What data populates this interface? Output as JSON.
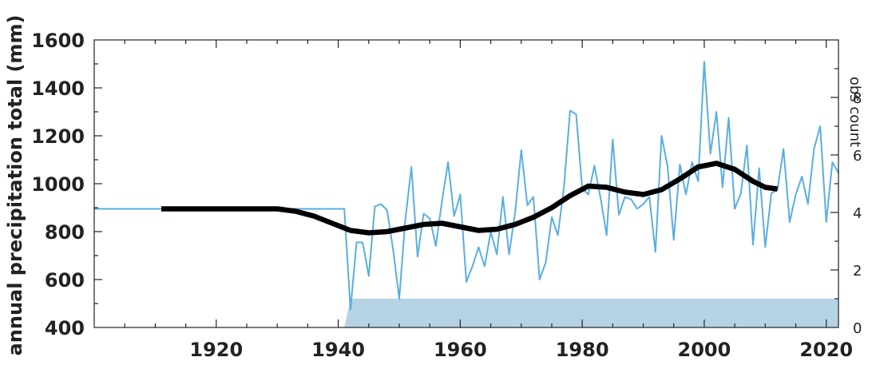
{
  "chart_data": {
    "type": "line",
    "title": "",
    "xlabel": "",
    "ylabel": "annual precipitation total (mm)",
    "y2label": "obs count",
    "xlim": [
      1900,
      2022
    ],
    "ylim": [
      400,
      1600
    ],
    "y2lim": [
      0,
      10
    ],
    "xticks": [
      1920,
      1940,
      1960,
      1980,
      2000,
      2020
    ],
    "yticks": [
      400,
      600,
      800,
      1000,
      1200,
      1400,
      1600
    ],
    "y2ticks": [
      0,
      2,
      4,
      6,
      8
    ],
    "grid": false,
    "colors": {
      "annual": "#5aaee0",
      "smooth": "#000000",
      "obs_fill": "#b5d3e5",
      "axes": "#222222"
    },
    "series": [
      {
        "x": [
          1900,
          1941,
          1942,
          1943,
          1944,
          1945,
          1946,
          1947,
          1948,
          1949,
          1950,
          1951,
          1952,
          1953,
          1954,
          1955,
          1956,
          1957,
          1958,
          1959,
          1960,
          1961,
          1962,
          1963,
          1964,
          1965,
          1966,
          1967,
          1968,
          1969,
          1970,
          1971,
          1972,
          1973,
          1974,
          1975,
          1976,
          1977,
          1978,
          1979,
          1980,
          1981,
          1982,
          1983,
          1984,
          1985,
          1986,
          1987,
          1988,
          1989,
          1990,
          1991,
          1992,
          1993,
          1994,
          1995,
          1996,
          1997,
          1998,
          1999,
          2000,
          2001,
          2002,
          2003,
          2004,
          2005,
          2006,
          2007,
          2008,
          2009,
          2010,
          2011,
          2012,
          2013,
          2014,
          2015,
          2016,
          2017,
          2018,
          2019,
          2020,
          2021,
          2022
        ],
        "values": [
          895,
          895,
          475,
          755,
          755,
          615,
          905,
          915,
          890,
          725,
          520,
          850,
          1070,
          695,
          875,
          855,
          740,
          925,
          1090,
          865,
          955,
          590,
          655,
          735,
          655,
          800,
          705,
          945,
          705,
          880,
          1140,
          910,
          945,
          600,
          670,
          860,
          785,
          985,
          1305,
          1290,
          980,
          955,
          1075,
          940,
          785,
          1185,
          870,
          945,
          935,
          895,
          915,
          945,
          715,
          1200,
          1070,
          765,
          1080,
          955,
          1090,
          1010,
          1510,
          1125,
          1300,
          985,
          1275,
          895,
          960,
          1160,
          745,
          1065,
          735,
          960,
          975,
          1145,
          840,
          955,
          1030,
          915,
          1145,
          1240,
          840,
          1090,
          1045
        ]
      },
      {
        "x": [
          1911,
          1915,
          1920,
          1925,
          1930,
          1933,
          1936,
          1939,
          1942,
          1945,
          1948,
          1951,
          1954,
          1957,
          1960,
          1963,
          1966,
          1969,
          1972,
          1975,
          1978,
          1981,
          1984,
          1987,
          1990,
          1993,
          1996,
          1999,
          2002,
          2005,
          2008,
          2010,
          2012
        ],
        "values": [
          895,
          895,
          895,
          895,
          895,
          885,
          865,
          835,
          805,
          795,
          800,
          815,
          830,
          835,
          820,
          805,
          810,
          830,
          860,
          900,
          950,
          990,
          985,
          965,
          955,
          975,
          1020,
          1070,
          1085,
          1060,
          1010,
          985,
          978
        ]
      }
    ],
    "obs_count": {
      "x": [
        1941,
        1942,
        2022
      ],
      "values": [
        0,
        1,
        1
      ]
    }
  }
}
